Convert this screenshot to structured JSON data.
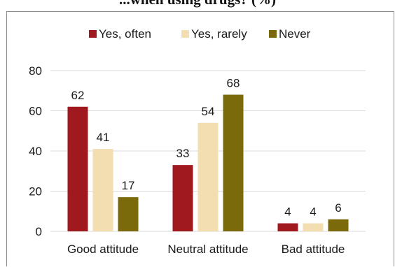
{
  "chart_data": {
    "type": "bar",
    "title_partial": "...when using drugs? (%)",
    "categories": [
      "Good attitude",
      "Neutral attitude",
      "Bad attitude"
    ],
    "series": [
      {
        "name": "Yes, often",
        "values": [
          62,
          33,
          4
        ],
        "color": "#a0191e"
      },
      {
        "name": "Yes, rarely",
        "values": [
          41,
          54,
          4
        ],
        "color": "#f2deb0"
      },
      {
        "name": "Never",
        "values": [
          17,
          68,
          6
        ],
        "color": "#7a6a0c"
      }
    ],
    "ylim": [
      0,
      80
    ],
    "yticks": [
      0,
      20,
      40,
      60,
      80
    ],
    "grid": true,
    "legend_position": "top"
  }
}
